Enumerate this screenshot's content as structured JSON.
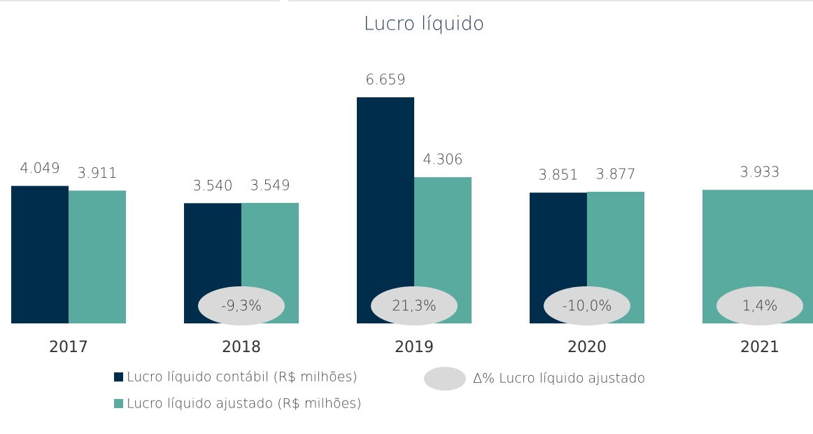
{
  "chart_data": {
    "type": "bar",
    "title": "Lucro líquido",
    "categories": [
      "2017",
      "2018",
      "2019",
      "2020",
      "2021"
    ],
    "series": [
      {
        "name": "Lucro líquido contábil (R$ milhões)",
        "color": "#002d4b",
        "values": [
          4049,
          3540,
          6659,
          3851,
          null
        ],
        "value_labels": [
          "4.049",
          "3.540",
          "6.659",
          "3.851",
          null
        ]
      },
      {
        "name": "Lucro líquido ajustado (R$ milhões)",
        "color": "#5aab9f",
        "values": [
          3911,
          3549,
          4306,
          3877,
          3933
        ],
        "value_labels": [
          "3.911",
          "3.549",
          "4.306",
          "3.877",
          "3.933"
        ]
      }
    ],
    "delta": {
      "name": "Δ% Lucro líquido ajustado",
      "color": "#d9d9d9",
      "values": [
        null,
        -9.3,
        21.3,
        -10.0,
        1.4
      ],
      "value_labels": [
        null,
        "-9,3%",
        "21,3%",
        "-10,0%",
        "1,4%"
      ]
    }
  }
}
